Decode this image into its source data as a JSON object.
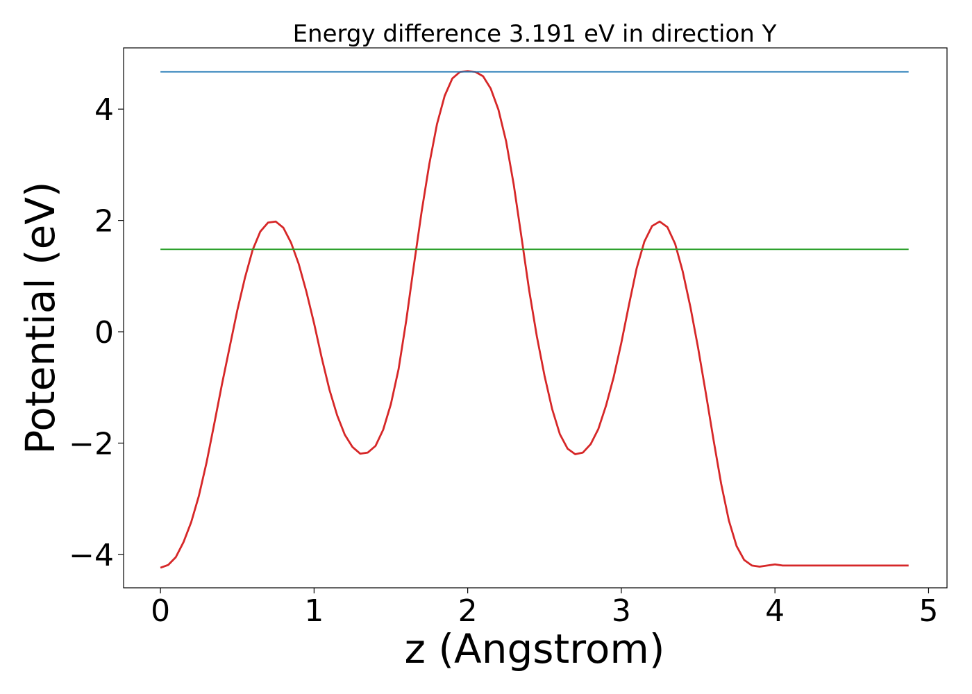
{
  "chart_data": {
    "type": "line",
    "title": "Energy difference 3.191 eV in direction Y",
    "xlabel": "z (Angstrom)",
    "ylabel": "Potential (eV)",
    "xlim": [
      -0.24,
      5.12
    ],
    "ylim": [
      -4.6,
      5.1
    ],
    "xticks": [
      0,
      1,
      2,
      3,
      4,
      5
    ],
    "xtick_labels": [
      "0",
      "1",
      "2",
      "3",
      "4",
      "5"
    ],
    "yticks": [
      -4,
      -2,
      0,
      2,
      4
    ],
    "ytick_labels": [
      "−4",
      "−2",
      "0",
      "2",
      "4"
    ],
    "grid": false,
    "series": [
      {
        "color": "#d62728",
        "x": [
          0.0,
          0.05,
          0.1,
          0.15,
          0.2,
          0.25,
          0.3,
          0.35,
          0.4,
          0.45,
          0.5,
          0.55,
          0.6,
          0.65,
          0.7,
          0.75,
          0.8,
          0.85,
          0.9,
          0.95,
          1.0,
          1.05,
          1.1,
          1.15,
          1.2,
          1.25,
          1.3,
          1.35,
          1.4,
          1.45,
          1.5,
          1.55,
          1.6,
          1.65,
          1.7,
          1.75,
          1.8,
          1.85,
          1.9,
          1.95,
          2.0,
          2.05,
          2.1,
          2.15,
          2.2,
          2.25,
          2.3,
          2.35,
          2.4,
          2.45,
          2.5,
          2.55,
          2.6,
          2.65,
          2.7,
          2.75,
          2.8,
          2.85,
          2.9,
          2.95,
          3.0,
          3.05,
          3.1,
          3.15,
          3.2,
          3.25,
          3.3,
          3.35,
          3.4,
          3.45,
          3.5,
          3.55,
          3.6,
          3.65,
          3.7,
          3.75,
          3.8,
          3.85,
          3.9,
          3.95,
          4.0,
          4.05,
          4.1,
          4.15,
          4.2,
          4.25,
          4.3,
          4.35,
          4.4,
          4.45,
          4.5,
          4.55,
          4.6,
          4.65,
          4.7,
          4.75,
          4.8,
          4.87
        ],
        "y": [
          -4.24,
          -4.19,
          -4.05,
          -3.78,
          -3.42,
          -2.95,
          -2.35,
          -1.66,
          -0.95,
          -0.28,
          0.38,
          0.97,
          1.47,
          1.8,
          1.96,
          1.98,
          1.87,
          1.6,
          1.22,
          0.72,
          0.15,
          -0.47,
          -1.04,
          -1.5,
          -1.85,
          -2.07,
          -2.19,
          -2.17,
          -2.05,
          -1.76,
          -1.3,
          -0.67,
          0.2,
          1.2,
          2.16,
          3.01,
          3.73,
          4.24,
          4.55,
          4.67,
          4.68,
          4.67,
          4.59,
          4.37,
          3.99,
          3.42,
          2.64,
          1.7,
          0.75,
          -0.08,
          -0.79,
          -1.39,
          -1.84,
          -2.1,
          -2.2,
          -2.17,
          -2.02,
          -1.75,
          -1.33,
          -0.82,
          -0.2,
          0.49,
          1.14,
          1.62,
          1.9,
          1.98,
          1.88,
          1.58,
          1.08,
          0.44,
          -0.29,
          -1.1,
          -1.94,
          -2.73,
          -3.39,
          -3.85,
          -4.1,
          -4.2,
          -4.22,
          -4.2,
          -4.18,
          -4.2,
          -4.2,
          -4.2,
          -4.2,
          -4.2,
          -4.2,
          -4.2,
          -4.2,
          -4.2,
          -4.2,
          -4.2,
          -4.2,
          -4.2,
          -4.2,
          -4.2,
          -4.2,
          -4.2
        ]
      },
      {
        "color": "#1f77b4",
        "x": [
          0.0,
          4.87
        ],
        "y": [
          4.67,
          4.67
        ]
      },
      {
        "color": "#2ca02c",
        "x": [
          0.0,
          4.87
        ],
        "y": [
          1.48,
          1.48
        ]
      }
    ]
  }
}
